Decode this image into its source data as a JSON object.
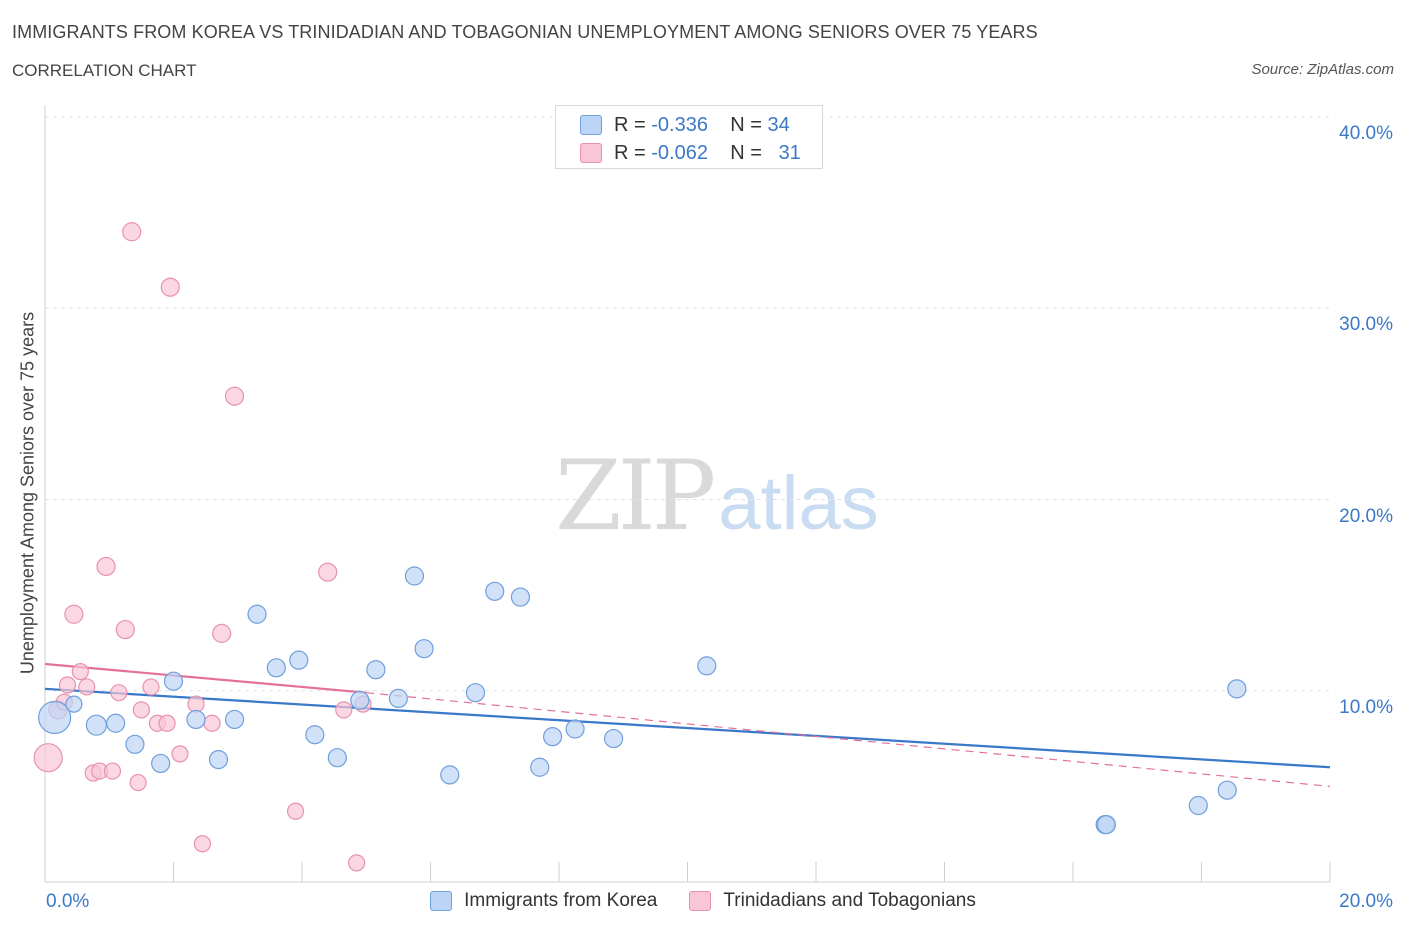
{
  "header": {
    "title": "IMMIGRANTS FROM KOREA VS TRINIDADIAN AND TOBAGONIAN UNEMPLOYMENT AMONG SENIORS OVER 75 YEARS",
    "subtitle": "CORRELATION CHART",
    "source": "Source: ZipAtlas.com"
  },
  "watermark": {
    "zip": "ZIP",
    "atlas": "atlas"
  },
  "colors": {
    "korea_fill": "#bcd4f5",
    "korea_stroke": "#6f9fdc",
    "korea_line": "#3a78c8",
    "trini_fill": "#f8c6d6",
    "trini_stroke": "#e892ae",
    "trini_line": "#e4709a",
    "grid": "#e3e3e3",
    "axis_text": "#3b78c9"
  },
  "stats_legend": [
    {
      "r_label": "R =",
      "r_value": "-0.336",
      "n_label": "N =",
      "n_value": "34"
    },
    {
      "r_label": "R =",
      "r_value": "-0.062",
      "n_label": "N =",
      "n_value": "31"
    }
  ],
  "chart_data": {
    "type": "scatter",
    "xlabel": "",
    "ylabel": "Unemployment Among Seniors over 75 years",
    "xlim": [
      0,
      20
    ],
    "ylim": [
      0,
      40
    ],
    "x_ticks": [
      "0.0%",
      "20.0%"
    ],
    "y_ticks": [
      {
        "value": 10,
        "label": "10.0%"
      },
      {
        "value": 20,
        "label": "20.0%"
      },
      {
        "value": 30,
        "label": "30.0%"
      },
      {
        "value": 40,
        "label": "40.0%"
      }
    ],
    "grid": true,
    "legend_position": "bottom-center",
    "series": [
      {
        "name": "Immigrants from Korea",
        "points": [
          {
            "x": 0.15,
            "y": 8.6,
            "s": 16
          },
          {
            "x": 0.8,
            "y": 8.2,
            "s": 10
          },
          {
            "x": 1.1,
            "y": 8.3,
            "s": 9
          },
          {
            "x": 1.4,
            "y": 7.2,
            "s": 9
          },
          {
            "x": 1.8,
            "y": 6.2,
            "s": 9
          },
          {
            "x": 2.0,
            "y": 10.5,
            "s": 9
          },
          {
            "x": 2.35,
            "y": 8.5,
            "s": 9
          },
          {
            "x": 2.7,
            "y": 6.4,
            "s": 9
          },
          {
            "x": 2.95,
            "y": 8.5,
            "s": 9
          },
          {
            "x": 3.3,
            "y": 14.0,
            "s": 9
          },
          {
            "x": 3.6,
            "y": 11.2,
            "s": 9
          },
          {
            "x": 3.95,
            "y": 11.6,
            "s": 9
          },
          {
            "x": 4.2,
            "y": 7.7,
            "s": 9
          },
          {
            "x": 4.55,
            "y": 6.5,
            "s": 9
          },
          {
            "x": 4.9,
            "y": 9.5,
            "s": 9
          },
          {
            "x": 5.15,
            "y": 11.1,
            "s": 9
          },
          {
            "x": 5.5,
            "y": 9.6,
            "s": 9
          },
          {
            "x": 5.75,
            "y": 16.0,
            "s": 9
          },
          {
            "x": 5.9,
            "y": 12.2,
            "s": 9
          },
          {
            "x": 6.3,
            "y": 5.6,
            "s": 9
          },
          {
            "x": 6.7,
            "y": 9.9,
            "s": 9
          },
          {
            "x": 7.0,
            "y": 15.2,
            "s": 9
          },
          {
            "x": 7.4,
            "y": 14.9,
            "s": 9
          },
          {
            "x": 7.7,
            "y": 6.0,
            "s": 9
          },
          {
            "x": 7.9,
            "y": 7.6,
            "s": 9
          },
          {
            "x": 8.25,
            "y": 8.0,
            "s": 9
          },
          {
            "x": 8.85,
            "y": 7.5,
            "s": 9
          },
          {
            "x": 10.3,
            "y": 11.3,
            "s": 9
          },
          {
            "x": 16.5,
            "y": 3.0,
            "s": 9
          },
          {
            "x": 16.52,
            "y": 3.0,
            "s": 9
          },
          {
            "x": 17.95,
            "y": 4.0,
            "s": 9
          },
          {
            "x": 18.4,
            "y": 4.8,
            "s": 9
          },
          {
            "x": 18.55,
            "y": 10.1,
            "s": 9
          },
          {
            "x": 0.45,
            "y": 9.3,
            "s": 8
          }
        ],
        "trend": {
          "x": [
            0,
            20
          ],
          "y": [
            10.1,
            6.0
          ]
        }
      },
      {
        "name": "Trinidadians and Tobagonians",
        "points": [
          {
            "x": 0.05,
            "y": 6.5,
            "s": 14
          },
          {
            "x": 0.2,
            "y": 9.0,
            "s": 9
          },
          {
            "x": 0.3,
            "y": 9.4,
            "s": 8
          },
          {
            "x": 0.35,
            "y": 10.3,
            "s": 8
          },
          {
            "x": 0.45,
            "y": 14.0,
            "s": 9
          },
          {
            "x": 0.55,
            "y": 11.0,
            "s": 8
          },
          {
            "x": 0.65,
            "y": 10.2,
            "s": 8
          },
          {
            "x": 0.75,
            "y": 5.7,
            "s": 8
          },
          {
            "x": 0.85,
            "y": 5.8,
            "s": 8
          },
          {
            "x": 0.95,
            "y": 16.5,
            "s": 9
          },
          {
            "x": 1.05,
            "y": 5.8,
            "s": 8
          },
          {
            "x": 1.15,
            "y": 9.9,
            "s": 8
          },
          {
            "x": 1.25,
            "y": 13.2,
            "s": 9
          },
          {
            "x": 1.35,
            "y": 34.0,
            "s": 9
          },
          {
            "x": 1.45,
            "y": 5.2,
            "s": 8
          },
          {
            "x": 1.5,
            "y": 9.0,
            "s": 8
          },
          {
            "x": 1.65,
            "y": 10.2,
            "s": 8
          },
          {
            "x": 1.75,
            "y": 8.3,
            "s": 8
          },
          {
            "x": 1.9,
            "y": 8.3,
            "s": 8
          },
          {
            "x": 1.95,
            "y": 31.1,
            "s": 9
          },
          {
            "x": 2.1,
            "y": 6.7,
            "s": 8
          },
          {
            "x": 2.35,
            "y": 9.3,
            "s": 8
          },
          {
            "x": 2.45,
            "y": 2.0,
            "s": 8
          },
          {
            "x": 2.6,
            "y": 8.3,
            "s": 8
          },
          {
            "x": 2.75,
            "y": 13.0,
            "s": 9
          },
          {
            "x": 2.95,
            "y": 25.4,
            "s": 9
          },
          {
            "x": 3.9,
            "y": 3.7,
            "s": 8
          },
          {
            "x": 4.4,
            "y": 16.2,
            "s": 9
          },
          {
            "x": 4.65,
            "y": 9.0,
            "s": 8
          },
          {
            "x": 4.85,
            "y": 1.0,
            "s": 8
          },
          {
            "x": 4.95,
            "y": 9.3,
            "s": 8
          }
        ],
        "trend": {
          "x": [
            0,
            5.0
          ],
          "y": [
            11.4,
            9.9
          ]
        },
        "trend_dashed": {
          "x": [
            5.0,
            20
          ],
          "y": [
            9.9,
            5.0
          ]
        }
      }
    ]
  }
}
